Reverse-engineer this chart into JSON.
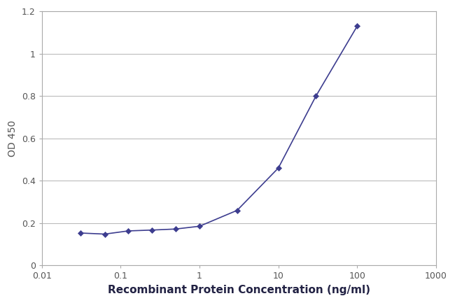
{
  "x": [
    0.031,
    0.063,
    0.125,
    0.25,
    0.5,
    1.0,
    3.0,
    10.0,
    30.0,
    100.0
  ],
  "y": [
    0.153,
    0.148,
    0.163,
    0.167,
    0.172,
    0.185,
    0.26,
    0.46,
    0.8,
    1.13
  ],
  "line_color": "#3d3d8f",
  "marker_color": "#3d3d8f",
  "marker_style": "D",
  "marker_size": 4,
  "line_width": 1.2,
  "xlabel": "Recombinant Protein Concentration (ng/ml)",
  "ylabel": "OD 450",
  "xlim": [
    0.01,
    1000
  ],
  "ylim": [
    0,
    1.2
  ],
  "yticks": [
    0,
    0.2,
    0.4,
    0.6,
    0.8,
    1.0,
    1.2
  ],
  "xtick_values": [
    0.01,
    0.1,
    1,
    10,
    100,
    1000
  ],
  "xtick_labels": [
    "0.01",
    "0.1",
    "1",
    "10",
    "100",
    "1000"
  ],
  "grid_color": "#bbbbbb",
  "background_color": "#ffffff",
  "plot_bg_color": "#ffffff",
  "spine_color": "#aaaaaa",
  "xlabel_fontsize": 11,
  "ylabel_fontsize": 10,
  "tick_fontsize": 9,
  "xlabel_bold": false,
  "tick_color": "#555555",
  "figsize": [
    6.5,
    4.33
  ],
  "dpi": 100
}
